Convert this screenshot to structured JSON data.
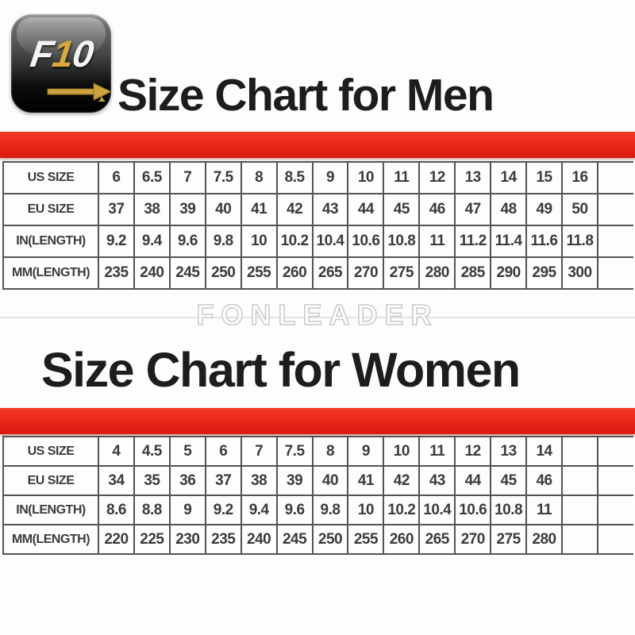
{
  "logo": {
    "f": "F",
    "one": "1",
    "zero": "0",
    "arrow_icon": "arrow-right",
    "tip_glyph": "➤"
  },
  "watermark": "FONLEADER",
  "colors": {
    "accent_red": "#e92417",
    "logo_gold": "#cda23e",
    "table_border": "#545454",
    "heading_text": "#1d1d1d",
    "cell_text": "#3b3b3b",
    "watermark_gray": "#c9c9c9"
  },
  "chart_data": [
    {
      "type": "table",
      "title": "Size Chart for Men",
      "trailing_empty_cols": 1,
      "rows": [
        {
          "label": "US SIZE",
          "values": [
            "6",
            "6.5",
            "7",
            "7.5",
            "8",
            "8.5",
            "9",
            "10",
            "11",
            "12",
            "13",
            "14",
            "15",
            "16"
          ]
        },
        {
          "label": "EU SIZE",
          "values": [
            "37",
            "38",
            "39",
            "40",
            "41",
            "42",
            "43",
            "44",
            "45",
            "46",
            "47",
            "48",
            "49",
            "50"
          ]
        },
        {
          "label": "IN(LENGTH)",
          "values": [
            "9.2",
            "9.4",
            "9.6",
            "9.8",
            "10",
            "10.2",
            "10.4",
            "10.6",
            "10.8",
            "11",
            "11.2",
            "11.4",
            "11.6",
            "11.8"
          ]
        },
        {
          "label": "MM(LENGTH)",
          "values": [
            "235",
            "240",
            "245",
            "250",
            "255",
            "260",
            "265",
            "270",
            "275",
            "280",
            "285",
            "290",
            "295",
            "300"
          ]
        }
      ]
    },
    {
      "type": "table",
      "title": "Size Chart for Women",
      "trailing_empty_cols": 2,
      "rows": [
        {
          "label": "US SIZE",
          "values": [
            "4",
            "4.5",
            "5",
            "6",
            "7",
            "7.5",
            "8",
            "9",
            "10",
            "11",
            "12",
            "13",
            "14"
          ]
        },
        {
          "label": "EU SIZE",
          "values": [
            "34",
            "35",
            "36",
            "37",
            "38",
            "39",
            "40",
            "41",
            "42",
            "43",
            "44",
            "45",
            "46"
          ]
        },
        {
          "label": "IN(LENGTH)",
          "values": [
            "8.6",
            "8.8",
            "9",
            "9.2",
            "9.4",
            "9.6",
            "9.8",
            "10",
            "10.2",
            "10.4",
            "10.6",
            "10.8",
            "11"
          ]
        },
        {
          "label": "MM(LENGTH)",
          "values": [
            "220",
            "225",
            "230",
            "235",
            "240",
            "245",
            "250",
            "255",
            "260",
            "265",
            "270",
            "275",
            "280"
          ]
        }
      ]
    }
  ]
}
